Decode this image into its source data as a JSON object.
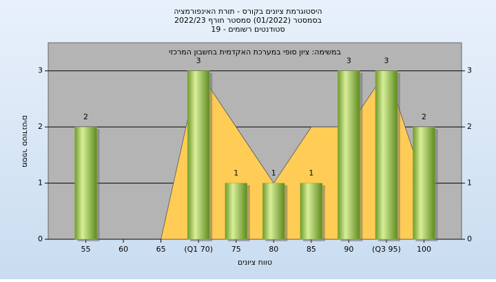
{
  "chart_data": {
    "type": "bar",
    "title": [
      "היסטוגרמת ציונים בקורס - תורת האינפורמציה",
      "בסמסטר  (01/2022)  סמסטר חורף 2022/23",
      "סטודנטים רשומים - 19"
    ],
    "subtitle": "במשימה: ציון סופי במערכת האקדמית בחשבון המרכזי",
    "x_label": "טווח ציונים",
    "y_label": "מספר סטודנטים",
    "categories": [
      "55",
      "60",
      "65",
      "(Q1 70)",
      "75",
      "80",
      "85",
      "90",
      "(Q3 95)",
      "100"
    ],
    "values": [
      2,
      0,
      0,
      3,
      1,
      1,
      1,
      3,
      3,
      2
    ],
    "color": "#8cb040",
    "area": {
      "color": "#ffcc55",
      "values": [
        null,
        null,
        0,
        3,
        2,
        1,
        2,
        2,
        3,
        1
      ]
    },
    "ylim": [
      0,
      3.5
    ],
    "yticks": [
      0,
      1,
      2,
      3
    ],
    "grid": true
  }
}
